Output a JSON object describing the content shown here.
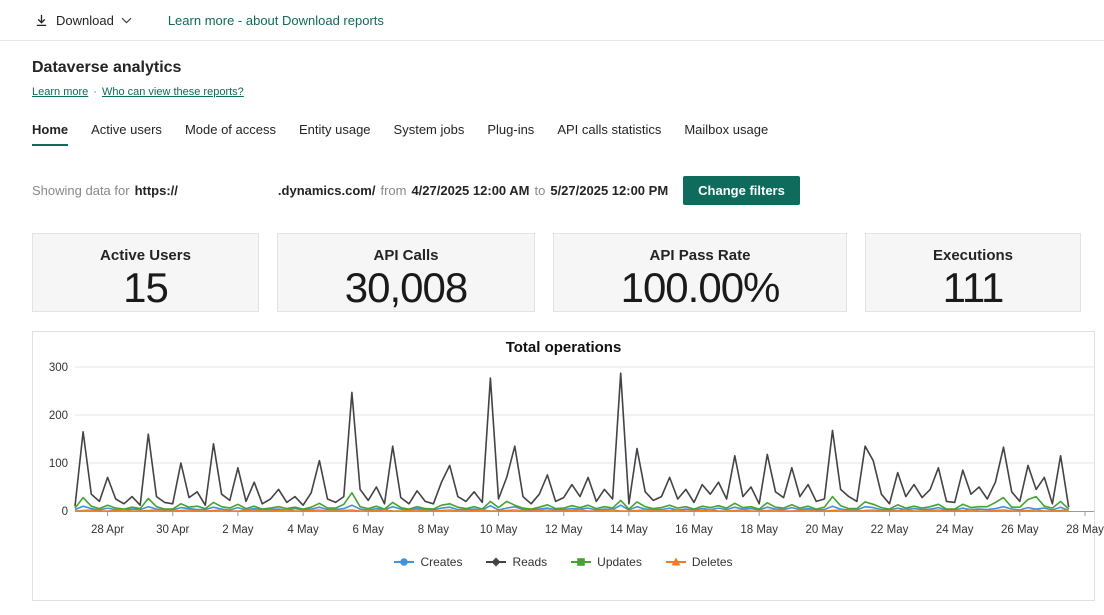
{
  "topbar": {
    "download_label": "Download",
    "learn_more_link": "Learn more - about Download reports"
  },
  "header": {
    "title": "Dataverse analytics",
    "learn_more": "Learn more",
    "separator": "·",
    "view_reports": "Who can view these reports?"
  },
  "tabs": {
    "items": [
      {
        "label": "Home",
        "active": true
      },
      {
        "label": "Active users",
        "active": false
      },
      {
        "label": "Mode of access",
        "active": false
      },
      {
        "label": "Entity usage",
        "active": false
      },
      {
        "label": "System jobs",
        "active": false
      },
      {
        "label": "Plug-ins",
        "active": false
      },
      {
        "label": "API calls statistics",
        "active": false
      },
      {
        "label": "Mailbox usage",
        "active": false
      }
    ]
  },
  "filter": {
    "prefix": "Showing data for",
    "url_prefix": "https://",
    "url_suffix": ".dynamics.com/",
    "from_label": "from",
    "from_value": "4/27/2025 12:00 AM",
    "to_label": "to",
    "to_value": "5/27/2025 12:00 PM",
    "change_filters_label": "Change filters"
  },
  "cards": [
    {
      "title": "Active Users",
      "value": "15"
    },
    {
      "title": "API Calls",
      "value": "30,008"
    },
    {
      "title": "API Pass Rate",
      "value": "100.00%"
    },
    {
      "title": "Executions",
      "value": "111"
    }
  ],
  "icons": {
    "download": "arrow-down-to-line",
    "chevron_down": "chevron-down"
  },
  "colors": {
    "accent_teal": "#0f6b5c",
    "card_bg": "#f6f6f6",
    "border": "#e1e1e1",
    "grid": "#e6e6e6",
    "axis": "#999999"
  },
  "chart_data": {
    "type": "line",
    "title": "Total operations",
    "x_unit": "6-hour intervals from 4/27/2025 12:00 AM to 5/27/2025 12:00 PM",
    "x_tick_labels": [
      "28 Apr",
      "30 Apr",
      "2 May",
      "4 May",
      "6 May",
      "8 May",
      "10 May",
      "12 May",
      "14 May",
      "16 May",
      "18 May",
      "20 May",
      "22 May",
      "24 May",
      "26 May",
      "28 May"
    ],
    "x_tick_first_index": 4,
    "x_tick_step": 8,
    "x_axis_max_index": 124,
    "ylim": [
      0,
      300
    ],
    "y_ticks": [
      0,
      100,
      200,
      300
    ],
    "grid": "horizontal",
    "legend_position": "bottom",
    "series": [
      {
        "name": "Creates",
        "color": "#4292d8",
        "marker": "circle",
        "values": [
          3,
          10,
          5,
          2,
          6,
          3,
          2,
          4,
          3,
          9,
          4,
          2,
          2,
          7,
          5,
          3,
          3,
          8,
          4,
          2,
          7,
          2,
          5,
          3,
          3,
          4,
          2,
          5,
          2,
          4,
          8,
          3,
          3,
          5,
          12,
          4,
          2,
          5,
          3,
          9,
          4,
          2,
          5,
          3,
          2,
          6,
          8,
          3,
          3,
          4,
          2,
          11,
          2,
          6,
          9,
          3,
          2,
          4,
          6,
          3,
          3,
          5,
          4,
          6,
          2,
          4,
          3,
          12,
          2,
          9,
          4,
          3,
          3,
          6,
          2,
          4,
          2,
          5,
          3,
          6,
          3,
          8,
          4,
          5,
          2,
          8,
          4,
          3,
          7,
          3,
          5,
          2,
          3,
          10,
          4,
          2,
          2,
          9,
          7,
          3,
          2,
          6,
          3,
          5,
          3,
          4,
          7,
          2,
          2,
          6,
          3,
          4,
          3,
          5,
          9,
          4,
          2,
          7,
          4,
          6,
          2,
          8,
          1
        ]
      },
      {
        "name": "Reads",
        "color": "#434348",
        "marker": "diamond",
        "values": [
          10,
          165,
          35,
          20,
          70,
          25,
          15,
          30,
          12,
          160,
          30,
          18,
          15,
          100,
          28,
          40,
          12,
          140,
          35,
          22,
          90,
          20,
          60,
          15,
          25,
          45,
          18,
          30,
          12,
          38,
          105,
          25,
          18,
          30,
          247,
          45,
          22,
          50,
          15,
          135,
          28,
          15,
          42,
          20,
          15,
          60,
          95,
          30,
          20,
          40,
          18,
          277,
          25,
          70,
          135,
          30,
          15,
          35,
          75,
          20,
          28,
          55,
          30,
          70,
          20,
          45,
          25,
          287,
          15,
          130,
          40,
          22,
          30,
          70,
          25,
          45,
          18,
          55,
          35,
          60,
          25,
          115,
          30,
          50,
          15,
          118,
          40,
          28,
          90,
          30,
          55,
          20,
          25,
          168,
          45,
          30,
          20,
          135,
          105,
          35,
          15,
          80,
          30,
          55,
          28,
          45,
          90,
          20,
          18,
          85,
          35,
          50,
          25,
          60,
          133,
          40,
          20,
          95,
          45,
          70,
          15,
          115,
          8
        ]
      },
      {
        "name": "Updates",
        "color": "#44a333",
        "marker": "square",
        "values": [
          6,
          28,
          10,
          5,
          12,
          6,
          4,
          8,
          5,
          26,
          9,
          4,
          4,
          15,
          8,
          10,
          5,
          18,
          9,
          6,
          14,
          5,
          10,
          4,
          6,
          9,
          5,
          8,
          4,
          8,
          16,
          6,
          6,
          14,
          38,
          9,
          5,
          10,
          4,
          18,
          7,
          4,
          9,
          5,
          4,
          12,
          15,
          8,
          5,
          9,
          4,
          20,
          7,
          20,
          12,
          6,
          4,
          8,
          13,
          5,
          6,
          11,
          7,
          12,
          5,
          9,
          6,
          22,
          4,
          19,
          9,
          5,
          7,
          12,
          6,
          9,
          4,
          10,
          7,
          11,
          6,
          16,
          7,
          9,
          4,
          17,
          8,
          6,
          13,
          6,
          10,
          4,
          8,
          30,
          11,
          5,
          5,
          19,
          14,
          7,
          4,
          13,
          6,
          10,
          6,
          9,
          14,
          4,
          4,
          14,
          7,
          9,
          9,
          18,
          28,
          8,
          8,
          24,
          30,
          10,
          6,
          20,
          4
        ]
      },
      {
        "name": "Deletes",
        "color": "#ec7c26",
        "marker": "triangle",
        "values": [
          0,
          1,
          2,
          0,
          0,
          1,
          2,
          0,
          0,
          1,
          2,
          0,
          0,
          1,
          2,
          0,
          0,
          1,
          2,
          0,
          0,
          1,
          2,
          0,
          0,
          1,
          2,
          0,
          0,
          1,
          2,
          0,
          0,
          1,
          2,
          0,
          0,
          1,
          2,
          0,
          0,
          1,
          2,
          0,
          0,
          1,
          2,
          0,
          0,
          1,
          2,
          0,
          0,
          1,
          2,
          0,
          0,
          1,
          2,
          0,
          0,
          1,
          2,
          0,
          0,
          1,
          2,
          0,
          0,
          1,
          2,
          0,
          0,
          1,
          2,
          0,
          0,
          1,
          2,
          0,
          0,
          1,
          2,
          0,
          0,
          1,
          2,
          0,
          0,
          1,
          2,
          0,
          0,
          1,
          2,
          0,
          0,
          1,
          2,
          0,
          0,
          1,
          2,
          0,
          0,
          1,
          2,
          0,
          0,
          1,
          2,
          0,
          0,
          1,
          2,
          0,
          0,
          1,
          2,
          0,
          0,
          1,
          2
        ]
      }
    ]
  }
}
